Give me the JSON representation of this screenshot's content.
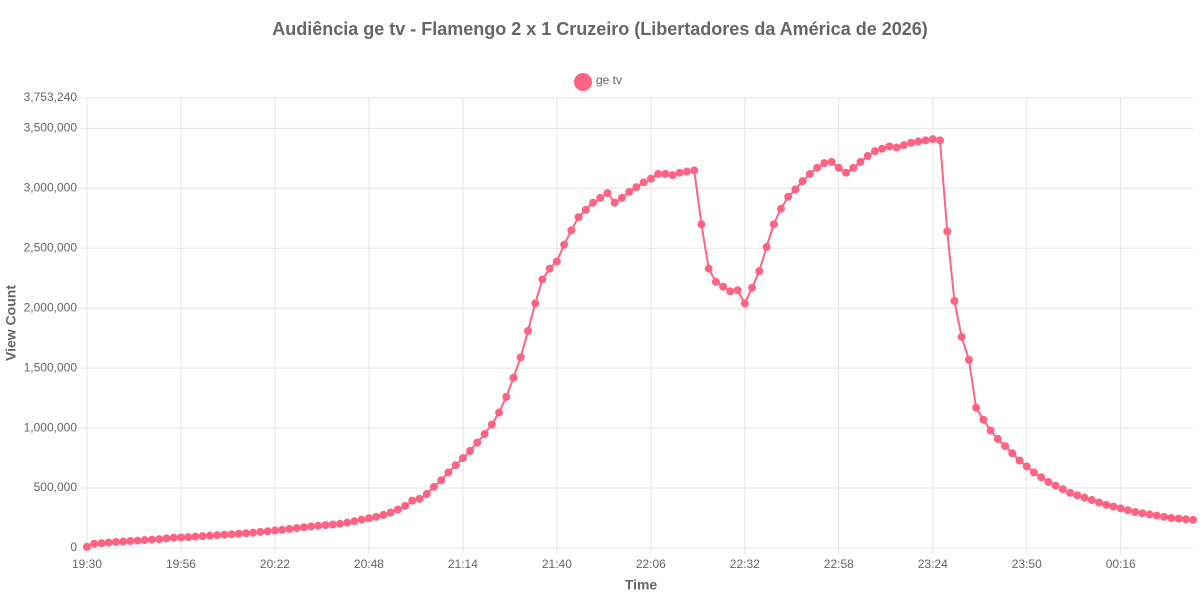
{
  "chart_data": {
    "type": "line",
    "title": "Audiência ge tv - Flamengo 2 x 1 Cruzeiro (Libertadores da América de 2026)",
    "x_label": "Time",
    "y_label": "View Count",
    "categories": [
      "19:30",
      null,
      null,
      null,
      null,
      null,
      null,
      null,
      null,
      null,
      null,
      null,
      null,
      "19:56",
      null,
      null,
      null,
      null,
      null,
      null,
      null,
      null,
      null,
      null,
      null,
      null,
      "20:22",
      null,
      null,
      null,
      null,
      null,
      null,
      null,
      null,
      null,
      null,
      null,
      null,
      "20:48",
      null,
      null,
      null,
      null,
      null,
      null,
      null,
      null,
      null,
      null,
      null,
      null,
      "21:14",
      null,
      null,
      null,
      null,
      null,
      null,
      null,
      null,
      null,
      null,
      null,
      null,
      "21:40",
      null,
      null,
      null,
      null,
      null,
      null,
      null,
      null,
      null,
      null,
      null,
      null,
      "22:06",
      null,
      null,
      null,
      null,
      null,
      null,
      null,
      null,
      null,
      null,
      null,
      null,
      "22:32",
      null,
      null,
      null,
      null,
      null,
      null,
      null,
      null,
      null,
      null,
      null,
      null,
      "22:58",
      null,
      null,
      null,
      null,
      null,
      null,
      null,
      null,
      null,
      null,
      null,
      null,
      "23:24",
      null,
      null,
      null,
      null,
      null,
      null,
      null,
      null,
      null,
      null,
      null,
      null,
      "23:50",
      null,
      null,
      null,
      null,
      null,
      null,
      null,
      null,
      null,
      null,
      null,
      null,
      "00:16",
      null,
      null,
      null,
      null,
      null,
      null,
      null,
      null,
      null,
      null
    ],
    "series": [
      {
        "name": "ge tv",
        "color": "#ff6384",
        "values": [
          10000,
          35000,
          40000,
          45000,
          50000,
          54000,
          58000,
          62000,
          66000,
          70000,
          74000,
          80000,
          86000,
          88000,
          91000,
          95000,
          99000,
          103000,
          107000,
          111000,
          115000,
          119000,
          123000,
          128000,
          134000,
          140000,
          146000,
          152000,
          159000,
          166000,
          173000,
          180000,
          186000,
          191000,
          196000,
          202000,
          212000,
          224000,
          237000,
          248000,
          260000,
          276000,
          296000,
          320000,
          350000,
          395000,
          410000,
          450000,
          510000,
          565000,
          630000,
          690000,
          750000,
          810000,
          880000,
          950000,
          1030000,
          1130000,
          1260000,
          1420000,
          1590000,
          1810000,
          2040000,
          2240000,
          2330000,
          2390000,
          2530000,
          2650000,
          2760000,
          2820000,
          2880000,
          2920000,
          2960000,
          2880000,
          2920000,
          2970000,
          3010000,
          3050000,
          3080000,
          3120000,
          3120000,
          3110000,
          3130000,
          3140000,
          3150000,
          2700000,
          2330000,
          2220000,
          2180000,
          2140000,
          2150000,
          2040000,
          2170000,
          2310000,
          2510000,
          2700000,
          2830000,
          2930000,
          2990000,
          3060000,
          3120000,
          3170000,
          3210000,
          3220000,
          3170000,
          3130000,
          3170000,
          3220000,
          3270000,
          3310000,
          3330000,
          3350000,
          3340000,
          3360000,
          3380000,
          3390000,
          3400000,
          3410000,
          3400000,
          2640000,
          2060000,
          1760000,
          1570000,
          1170000,
          1070000,
          980000,
          910000,
          850000,
          790000,
          730000,
          680000,
          630000,
          590000,
          550000,
          520000,
          490000,
          460000,
          440000,
          420000,
          400000,
          380000,
          360000,
          345000,
          330000,
          315000,
          300000,
          290000,
          280000,
          270000,
          260000,
          250000,
          245000,
          240000,
          235000
        ]
      }
    ],
    "ylim": [
      0,
      3753240
    ],
    "yticks": [
      0,
      {
        "value": 500000,
        "label": "500,000"
      },
      {
        "value": 1000000,
        "label": "1,000,000"
      },
      {
        "value": 1500000,
        "label": "1,500,000"
      },
      {
        "value": 2000000,
        "label": "2,000,000"
      },
      {
        "value": 2500000,
        "label": "2,500,000"
      },
      {
        "value": 3000000,
        "label": "3,000,000"
      },
      {
        "value": 3500000,
        "label": "3,500,000"
      },
      {
        "value": 3753240,
        "label": "3,753,240"
      }
    ],
    "grid": true,
    "legend": "top"
  }
}
